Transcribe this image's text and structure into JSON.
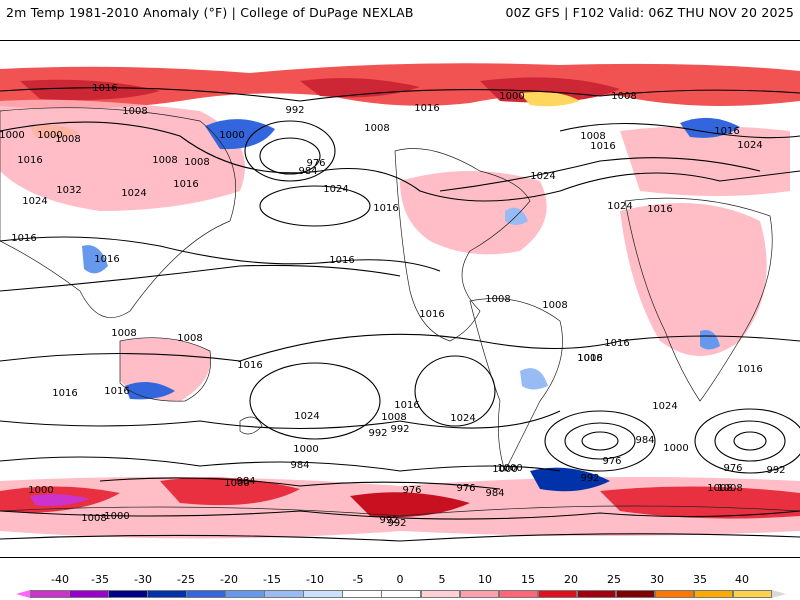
{
  "header": {
    "left_title": "2m Temp 1981-2010 Anomaly (°F) | College of DuPage NEXLAB",
    "right_title": "00Z GFS | F102 Valid: 06Z THU NOV 20 2025"
  },
  "map": {
    "contour_labels": [
      "1016",
      "1008",
      "992",
      "1000",
      "1008",
      "1016",
      "1000",
      "1008",
      "1016",
      "1032",
      "1024",
      "1024",
      "1016",
      "1016",
      "1008",
      "1008",
      "1000",
      "976",
      "984",
      "1024",
      "1008",
      "1016",
      "1016",
      "1024",
      "1000",
      "1008",
      "1016",
      "1008",
      "1016",
      "1024",
      "1024",
      "1016",
      "1008",
      "1016",
      "1016",
      "1016",
      "1016",
      "1008",
      "1008",
      "1016",
      "1016",
      "1024",
      "1008",
      "992",
      "1016",
      "1024",
      "1008",
      "1000",
      "992",
      "976",
      "984",
      "1000",
      "984",
      "976",
      "992",
      "984",
      "1000",
      "1008",
      "992",
      "1016",
      "1008",
      "1024",
      "976",
      "984",
      "1000",
      "992",
      "1000",
      "976",
      "992",
      "1008",
      "1000",
      "1000",
      "1016"
    ]
  },
  "colorbar": {
    "labels": [
      "-40",
      "-35",
      "-30",
      "-25",
      "-20",
      "-15",
      "-10",
      "-5",
      "0",
      "5",
      "10",
      "15",
      "20",
      "25",
      "30",
      "35",
      "40"
    ],
    "colors": [
      "#ff66ff",
      "#cc33cc",
      "#9900cc",
      "#000088",
      "#0033aa",
      "#3366dd",
      "#6699ee",
      "#99bbf5",
      "#cce0ff",
      "#ffffff",
      "#ffffff",
      "#ffd0d5",
      "#ff9fab",
      "#ff6677",
      "#e01020",
      "#a00010",
      "#800000",
      "#ff7700",
      "#ffaa00",
      "#ffd24d",
      "#d9d9d9"
    ]
  }
}
